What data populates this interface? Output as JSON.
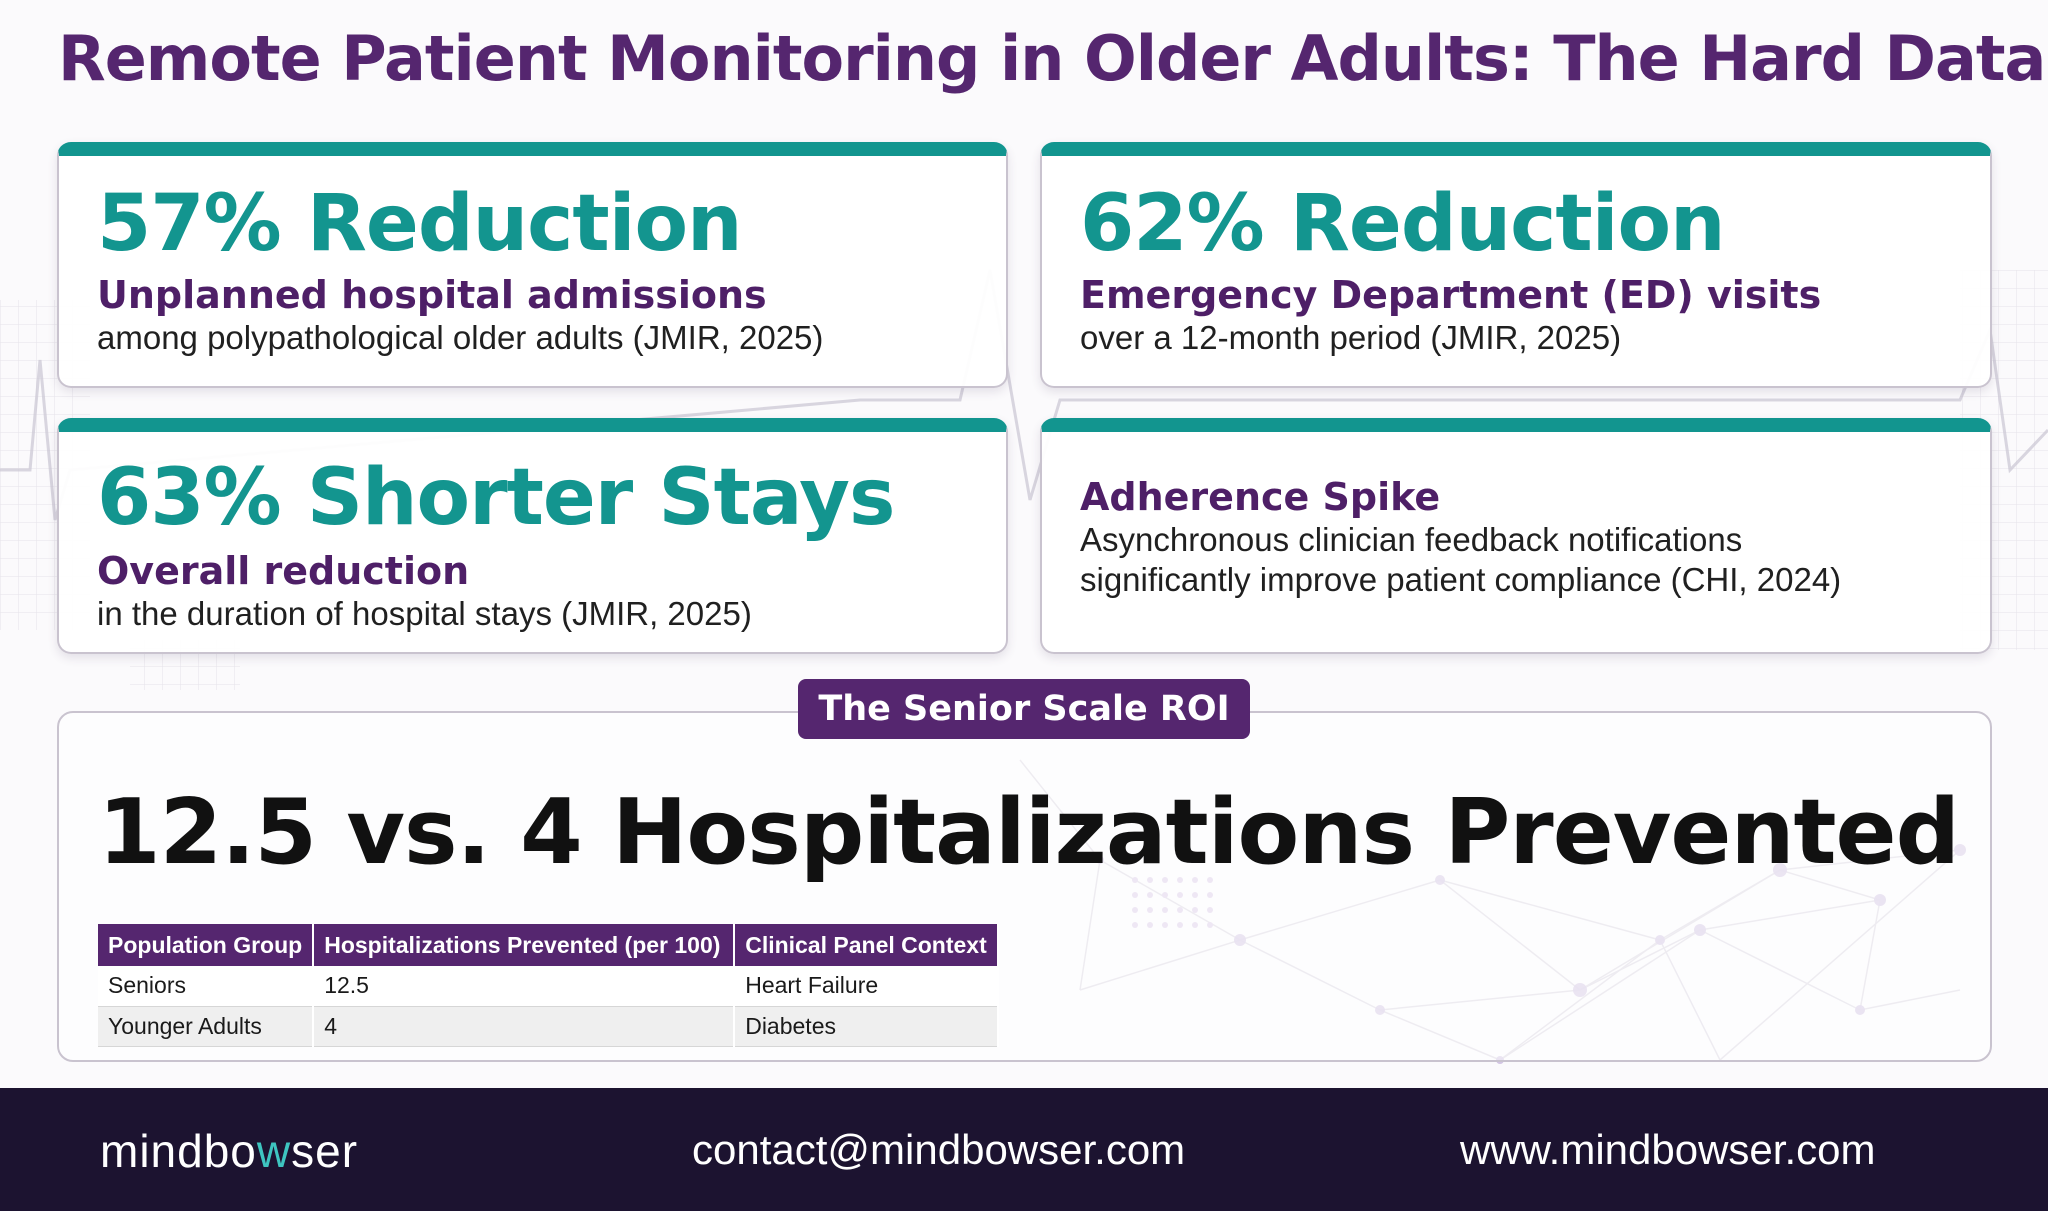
{
  "title": "Remote Patient Monitoring in Older Adults: The Hard Data",
  "cards": [
    {
      "stat": "57% Reduction",
      "subtitle": "Unplanned hospital admissions",
      "description": "among polypathological older adults (JMIR, 2025)"
    },
    {
      "stat": "62% Reduction",
      "subtitle": "Emergency Department (ED) visits",
      "description": "over a 12-month period (JMIR, 2025)"
    },
    {
      "stat": "63% Shorter Stays",
      "subtitle": "Overall reduction",
      "description": "in the duration of hospital stays (JMIR, 2025)"
    },
    {
      "subtitle": "Adherence Spike",
      "description_lines": [
        "Asynchronous clinician feedback notifications",
        "significantly improve patient compliance (CHI, 2024)"
      ]
    }
  ],
  "roi": {
    "badge": "The Senior Scale ROI",
    "headline": "12.5 vs. 4 Hospitalizations Prevented",
    "table": {
      "headers": [
        "Population Group",
        "Hospitalizations Prevented (per 100)",
        "Clinical Panel Context"
      ],
      "rows": [
        [
          "Seniors",
          "12.5",
          "Heart Failure"
        ],
        [
          "Younger Adults",
          "4",
          "Diabetes"
        ]
      ]
    }
  },
  "footer": {
    "logo_text": "mindbowser",
    "email": "contact@mindbowser.com",
    "website": "www.mindbowser.com"
  },
  "colors": {
    "title_purple": "#55266f",
    "teal": "#13958f",
    "dark_purple": "#4e1f67",
    "footer_bg": "#1c1330",
    "logo_accent": "#3ec5c0"
  },
  "icons": [
    "ecg-line-icon",
    "network-graph-icon"
  ]
}
